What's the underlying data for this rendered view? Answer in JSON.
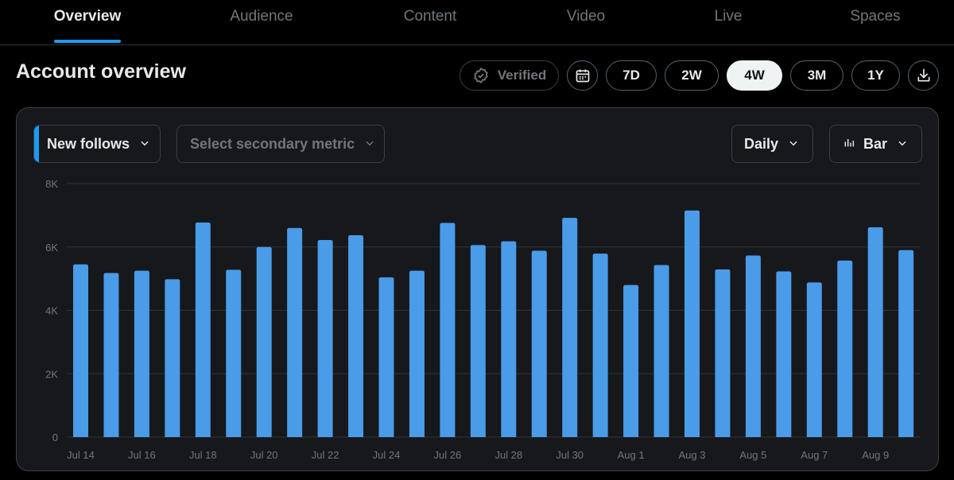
{
  "tabs": [
    {
      "label": "Overview",
      "active": true
    },
    {
      "label": "Audience",
      "active": false
    },
    {
      "label": "Content",
      "active": false
    },
    {
      "label": "Video",
      "active": false
    },
    {
      "label": "Live",
      "active": false
    },
    {
      "label": "Spaces",
      "active": false
    }
  ],
  "header": {
    "title": "Account overview",
    "verified_label": "Verified",
    "ranges": [
      "7D",
      "2W",
      "4W",
      "3M",
      "1Y"
    ],
    "selected_range": "4W"
  },
  "controls": {
    "primary_metric": "New follows",
    "secondary_placeholder": "Select secondary metric",
    "interval": "Daily",
    "chart_type": "Bar"
  },
  "colors": {
    "accent": "#1d9bf0",
    "bar": "#4a9be8"
  },
  "chart_data": {
    "type": "bar",
    "ylim": [
      0,
      8000
    ],
    "y_ticks": [
      0,
      2000,
      4000,
      6000,
      8000
    ],
    "y_tick_labels": [
      "0",
      "2K",
      "4K",
      "6K",
      "8K"
    ],
    "categories": [
      "Jul 14",
      "Jul 15",
      "Jul 16",
      "Jul 17",
      "Jul 18",
      "Jul 19",
      "Jul 20",
      "Jul 21",
      "Jul 22",
      "Jul 23",
      "Jul 24",
      "Jul 25",
      "Jul 26",
      "Jul 27",
      "Jul 28",
      "Jul 29",
      "Jul 30",
      "Jul 31",
      "Aug 1",
      "Aug 2",
      "Aug 3",
      "Aug 4",
      "Aug 5",
      "Aug 6",
      "Aug 7",
      "Aug 8",
      "Aug 9",
      "Aug 10"
    ],
    "x_tick_labels": [
      "Jul 14",
      "",
      "Jul 16",
      "",
      "Jul 18",
      "",
      "Jul 20",
      "",
      "Jul 22",
      "",
      "Jul 24",
      "",
      "Jul 26",
      "",
      "Jul 28",
      "",
      "Jul 30",
      "",
      "Aug 1",
      "",
      "Aug 3",
      "",
      "Aug 5",
      "",
      "Aug 7",
      "",
      "Aug 9",
      ""
    ],
    "values": [
      5450,
      5180,
      5250,
      4980,
      6770,
      5280,
      6000,
      6600,
      6220,
      6370,
      5040,
      5250,
      6760,
      6060,
      6180,
      5880,
      6920,
      5790,
      4800,
      5430,
      7150,
      5290,
      5730,
      5230,
      4880,
      5570,
      6620,
      5900
    ],
    "grid": true,
    "legend": "none"
  }
}
